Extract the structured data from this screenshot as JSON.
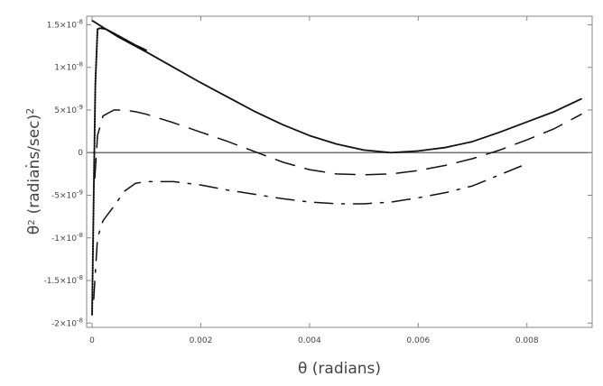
{
  "chart_data": {
    "type": "line",
    "title": "",
    "xlabel": "θ (radians)",
    "ylabel_base": "θ",
    "ylabel_dot": "˙",
    "ylabel_sup": "2",
    "ylabel_units": "(radians/sec)",
    "ylabel_units_sup": "2",
    "xlim": [
      -0.0001,
      0.0092
    ],
    "ylim": [
      -2.05e-08,
      1.6e-08
    ],
    "x_ticks": [
      {
        "value": 0,
        "label": "0"
      },
      {
        "value": 0.002,
        "label": "0.002"
      },
      {
        "value": 0.004,
        "label": "0.004"
      },
      {
        "value": 0.006,
        "label": "0.006"
      },
      {
        "value": 0.008,
        "label": "0.008"
      }
    ],
    "y_ticks": [
      {
        "value": 1.5e-08,
        "mant": "1.5×10",
        "exp": "-8"
      },
      {
        "value": 1e-08,
        "mant": "1×10",
        "exp": "-8"
      },
      {
        "value": 5e-09,
        "mant": "5×10",
        "exp": "-9"
      },
      {
        "value": 0,
        "mant": "0",
        "exp": ""
      },
      {
        "value": -5e-09,
        "mant": "-5×10",
        "exp": "-9"
      },
      {
        "value": -1e-08,
        "mant": "-1×10",
        "exp": "-8"
      },
      {
        "value": -1.5e-08,
        "mant": "-1.5×10",
        "exp": "-8"
      },
      {
        "value": -2e-08,
        "mant": "-2×10",
        "exp": "-8"
      }
    ],
    "grid": false,
    "zero_line": true,
    "series": [
      {
        "style": "solid",
        "x": [
          0,
          0.0005,
          0.001,
          0.0015,
          0.002,
          0.0025,
          0.003,
          0.0035,
          0.004,
          0.0045,
          0.005,
          0.0055,
          0.006,
          0.0065,
          0.007,
          0.0075,
          0.008,
          0.0085,
          0.009
        ],
        "y": [
          1.55e-08,
          1.35e-08,
          1.18e-08,
          1e-08,
          8.2e-09,
          6.5e-09,
          4.8e-09,
          3.3e-09,
          2e-09,
          1e-09,
          3e-10,
          0,
          2e-10,
          6e-10,
          1.3e-09,
          2.4e-09,
          3.6e-09,
          4.8e-09,
          6.3e-09
        ]
      },
      {
        "style": "dotted",
        "x": [
          0,
          3e-05,
          6e-05,
          0.0001,
          0.00015,
          0.00025,
          0.0004,
          0.0006,
          0.0008,
          0.001
        ],
        "y": [
          -1.9e-08,
          -5e-09,
          8e-09,
          1.45e-08,
          1.46e-08,
          1.45e-08,
          1.4e-08,
          1.33e-08,
          1.26e-08,
          1.2e-08
        ]
      },
      {
        "style": "long-dash",
        "x": [
          5e-05,
          0.0001,
          0.0002,
          0.0004,
          0.0006,
          0.0008,
          0.001,
          0.0015,
          0.002,
          0.0025,
          0.003,
          0.0035,
          0.004,
          0.0045,
          0.005,
          0.0055,
          0.006,
          0.0065,
          0.007,
          0.0075,
          0.008,
          0.0085,
          0.009
        ],
        "y": [
          -3e-09,
          2e-09,
          4.3e-09,
          5e-09,
          5e-09,
          4.8e-09,
          4.5e-09,
          3.5e-09,
          2.4e-09,
          1.3e-09,
          1e-10,
          -1.1e-09,
          -2e-09,
          -2.5e-09,
          -2.6e-09,
          -2.5e-09,
          -2.1e-09,
          -1.5e-09,
          -7e-10,
          3e-10,
          1.5e-09,
          2.8e-09,
          4.5e-09
        ]
      },
      {
        "style": "dash-dot",
        "x": [
          3e-05,
          0.0001,
          0.0002,
          0.0004,
          0.0006,
          0.0008,
          0.001,
          0.0015,
          0.002,
          0.0025,
          0.003,
          0.0035,
          0.004,
          0.0045,
          0.005,
          0.0055,
          0.006,
          0.0065,
          0.007,
          0.0075,
          0.008
        ],
        "y": [
          -1.72e-08,
          -1e-08,
          -8e-09,
          -6.3e-09,
          -4.5e-09,
          -3.6e-09,
          -3.4e-09,
          -3.4e-09,
          -3.8e-09,
          -4.4e-09,
          -4.9e-09,
          -5.4e-09,
          -5.8e-09,
          -6e-09,
          -6e-09,
          -5.8e-09,
          -5.3e-09,
          -4.7e-09,
          -3.9e-09,
          -2.6e-09,
          -1.3e-09
        ]
      }
    ]
  }
}
